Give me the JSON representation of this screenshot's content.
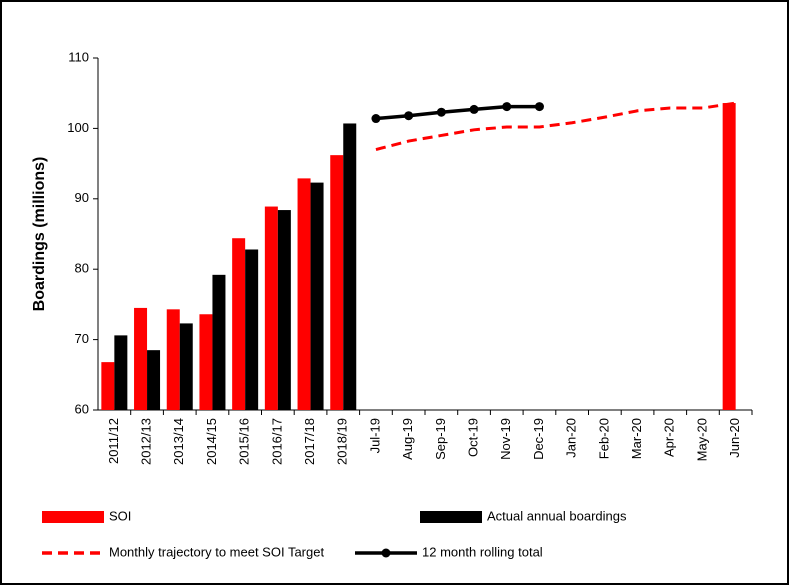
{
  "chart_data": {
    "type": "bar",
    "ylabel": "Boardings (millions)",
    "categories": [
      "2011/12",
      "2012/13",
      "2013/14",
      "2014/15",
      "2015/16",
      "2016/17",
      "2017/18",
      "2018/19",
      "Jul-19",
      "Aug-19",
      "Sep-19",
      "Oct-19",
      "Nov-19",
      "Dec-19",
      "Jan-20",
      "Feb-20",
      "Mar-20",
      "Apr-20",
      "May-20",
      "Jun-20"
    ],
    "series": [
      {
        "name": "SOI",
        "type": "bar",
        "color": "#ff0000",
        "values": [
          66.8,
          74.5,
          74.3,
          73.6,
          84.4,
          88.9,
          92.9,
          96.2,
          null,
          null,
          null,
          null,
          null,
          null,
          null,
          null,
          null,
          null,
          null,
          103.6
        ]
      },
      {
        "name": "Actual annual boardings",
        "type": "bar",
        "color": "#000000",
        "values": [
          70.6,
          68.5,
          72.3,
          79.2,
          82.8,
          88.4,
          92.3,
          100.7,
          null,
          null,
          null,
          null,
          null,
          null,
          null,
          null,
          null,
          null,
          null,
          null
        ]
      },
      {
        "name": "Monthly trajectory to meet SOI Target",
        "type": "line",
        "dashed": true,
        "markers": false,
        "color": "#ff0000",
        "values": [
          null,
          null,
          null,
          null,
          null,
          null,
          null,
          null,
          97.0,
          98.2,
          99.0,
          99.8,
          100.2,
          100.2,
          100.8,
          101.6,
          102.5,
          102.9,
          102.9,
          103.6
        ]
      },
      {
        "name": "12 month rolling total",
        "type": "line",
        "dashed": false,
        "markers": true,
        "color": "#000000",
        "values": [
          null,
          null,
          null,
          null,
          null,
          null,
          null,
          null,
          101.4,
          101.8,
          102.3,
          102.7,
          103.1,
          103.1,
          null,
          null,
          null,
          null,
          null,
          null
        ]
      }
    ],
    "ylim": [
      60,
      110
    ],
    "yticks": [
      60,
      70,
      80,
      90,
      100,
      110
    ],
    "grid": false
  }
}
